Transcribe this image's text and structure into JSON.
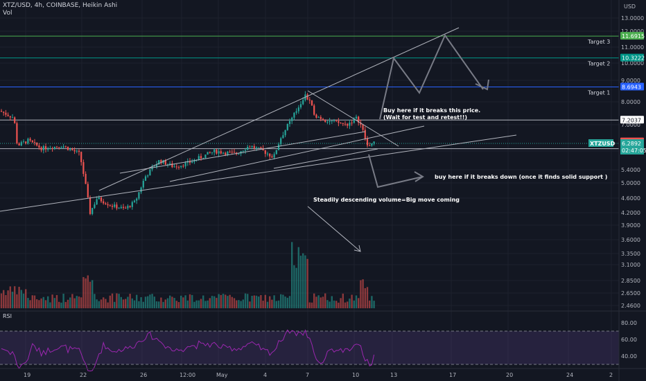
{
  "header": {
    "title": "XTZ/USD, 4h, COINBASE, Heikin Ashi",
    "indicator": "Vol",
    "currency": "USD"
  },
  "rsi_panel": {
    "label": "RSI",
    "ticks": [
      "80.00",
      "60.00",
      "40.00"
    ]
  },
  "chart_data": {
    "type": "candlestick",
    "symbol": "XTZUSD",
    "timeframe": "4h",
    "exchange": "COINBASE",
    "x_ticks": [
      "19",
      "22",
      "26",
      "12:00",
      "May",
      "4",
      "7",
      "10",
      "13",
      "17",
      "20",
      "24",
      "2"
    ],
    "y_ticks": [
      "13.0000",
      "12.0000",
      "11.0000",
      "10.0000",
      "9.0000",
      "8.0000",
      "7.0000",
      "6.0000",
      "5.4000",
      "5.0000",
      "4.6000",
      "4.2000",
      "3.9000",
      "3.6000",
      "3.3500",
      "3.1000",
      "2.8500",
      "2.6500",
      "2.4600"
    ],
    "price_labels": [
      {
        "value": "11.6915",
        "color": "#4caf50"
      },
      {
        "value": "10.3222",
        "color": "#009688"
      },
      {
        "value": "8.6943",
        "color": "#2962ff"
      },
      {
        "value": "7.2037",
        "color": "#ffffff"
      },
      {
        "value": "6.3536",
        "color": "#ef5350"
      },
      {
        "value": "6.0879",
        "color": "#ffffff"
      }
    ],
    "current_price": {
      "label": "XTZUSD",
      "value": "6.2892",
      "countdown": "02:47:05",
      "color": "#26a69a"
    },
    "targets": [
      {
        "label": "Target 3",
        "value": 11.6915,
        "color": "#4caf50"
      },
      {
        "label": "Target 2",
        "value": 10.3222,
        "color": "#009688"
      },
      {
        "label": "Target 1",
        "value": 8.6943,
        "color": "#2962ff"
      }
    ],
    "annotations": [
      "Buy here if it breaks this price.",
      "(Wait for test and retest!!)",
      "buy here if it breaks down (once it finds solid support )",
      "Steadily descending volume=Big move coming"
    ],
    "rsi_levels": [
      70,
      30
    ],
    "colors": {
      "up": "#26a69a",
      "down": "#ef5350",
      "rsi": "#9c27b0"
    }
  }
}
